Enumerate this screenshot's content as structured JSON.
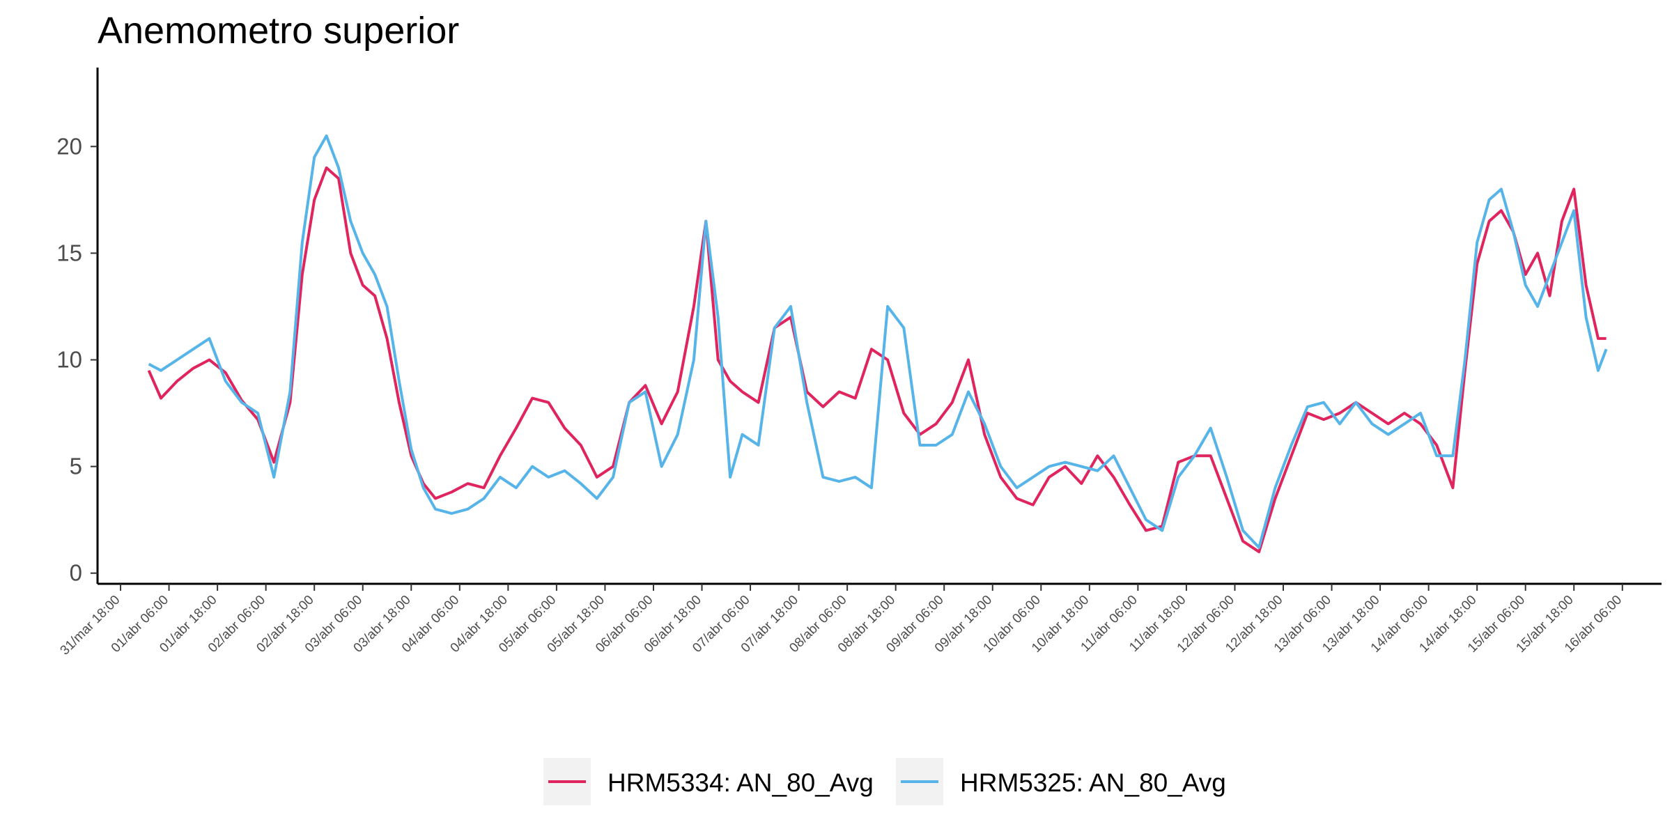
{
  "chart_data": {
    "type": "line",
    "title": "Anemometro superior",
    "xlabel": "",
    "ylabel": "",
    "ylim": [
      -0.5,
      23.7
    ],
    "yticks": [
      0,
      5,
      10,
      15,
      20
    ],
    "xlim": [
      "2025-03-31T12:18",
      "2025-04-16T15:42"
    ],
    "xtick_values": [
      "2025-03-31T18:00",
      "2025-04-01T06:00",
      "2025-04-01T18:00",
      "2025-04-02T06:00",
      "2025-04-02T18:00",
      "2025-04-03T06:00",
      "2025-04-03T18:00",
      "2025-04-04T06:00",
      "2025-04-04T18:00",
      "2025-04-05T06:00",
      "2025-04-05T18:00",
      "2025-04-06T06:00",
      "2025-04-06T18:00",
      "2025-04-07T06:00",
      "2025-04-07T18:00",
      "2025-04-08T06:00",
      "2025-04-08T18:00",
      "2025-04-09T06:00",
      "2025-04-09T18:00",
      "2025-04-10T06:00",
      "2025-04-10T18:00",
      "2025-04-11T06:00",
      "2025-04-11T18:00",
      "2025-04-12T06:00",
      "2025-04-12T18:00",
      "2025-04-13T06:00",
      "2025-04-13T18:00",
      "2025-04-14T06:00",
      "2025-04-14T18:00",
      "2025-04-15T06:00",
      "2025-04-15T18:00",
      "2025-04-16T06:00"
    ],
    "xtick_labels": [
      "31/mar 18:00",
      "01/abr 06:00",
      "01/abr 18:00",
      "02/abr 06:00",
      "02/abr 18:00",
      "03/abr 06:00",
      "03/abr 18:00",
      "04/abr 06:00",
      "04/abr 18:00",
      "05/abr 06:00",
      "05/abr 18:00",
      "06/abr 06:00",
      "06/abr 18:00",
      "07/abr 06:00",
      "07/abr 18:00",
      "08/abr 06:00",
      "08/abr 18:00",
      "09/abr 06:00",
      "09/abr 18:00",
      "10/abr 06:00",
      "10/abr 18:00",
      "11/abr 06:00",
      "11/abr 18:00",
      "12/abr 06:00",
      "12/abr 18:00",
      "13/abr 06:00",
      "13/abr 18:00",
      "14/abr 06:00",
      "14/abr 18:00",
      "15/abr 06:00",
      "15/abr 18:00",
      "16/abr 06:00"
    ],
    "grid": false,
    "legend": "bottom",
    "series": [
      {
        "name": "HRM5334: AN_80_Avg",
        "color": "#e0245e",
        "x": [
          "2025-04-01T01:00",
          "2025-04-01T04:00",
          "2025-04-01T08:00",
          "2025-04-01T12:00",
          "2025-04-01T16:00",
          "2025-04-01T20:00",
          "2025-04-02T00:00",
          "2025-04-02T04:00",
          "2025-04-02T08:00",
          "2025-04-02T12:00",
          "2025-04-02T15:00",
          "2025-04-02T18:00",
          "2025-04-02T21:00",
          "2025-04-03T00:00",
          "2025-04-03T03:00",
          "2025-04-03T06:00",
          "2025-04-03T09:00",
          "2025-04-03T12:00",
          "2025-04-03T15:00",
          "2025-04-03T18:00",
          "2025-04-03T21:00",
          "2025-04-04T00:00",
          "2025-04-04T04:00",
          "2025-04-04T08:00",
          "2025-04-04T12:00",
          "2025-04-04T16:00",
          "2025-04-04T20:00",
          "2025-04-05T00:00",
          "2025-04-05T04:00",
          "2025-04-05T08:00",
          "2025-04-05T12:00",
          "2025-04-05T16:00",
          "2025-04-05T20:00",
          "2025-04-06T00:00",
          "2025-04-06T04:00",
          "2025-04-06T08:00",
          "2025-04-06T12:00",
          "2025-04-06T16:00",
          "2025-04-06T19:00",
          "2025-04-06T22:00",
          "2025-04-07T01:00",
          "2025-04-07T04:00",
          "2025-04-07T08:00",
          "2025-04-07T12:00",
          "2025-04-07T16:00",
          "2025-04-07T20:00",
          "2025-04-08T00:00",
          "2025-04-08T04:00",
          "2025-04-08T08:00",
          "2025-04-08T12:00",
          "2025-04-08T16:00",
          "2025-04-08T20:00",
          "2025-04-09T00:00",
          "2025-04-09T04:00",
          "2025-04-09T08:00",
          "2025-04-09T12:00",
          "2025-04-09T16:00",
          "2025-04-09T20:00",
          "2025-04-10T00:00",
          "2025-04-10T04:00",
          "2025-04-10T08:00",
          "2025-04-10T12:00",
          "2025-04-10T16:00",
          "2025-04-10T20:00",
          "2025-04-11T00:00",
          "2025-04-11T04:00",
          "2025-04-11T08:00",
          "2025-04-11T12:00",
          "2025-04-11T16:00",
          "2025-04-11T20:00",
          "2025-04-12T00:00",
          "2025-04-12T04:00",
          "2025-04-12T08:00",
          "2025-04-12T12:00",
          "2025-04-12T16:00",
          "2025-04-12T20:00",
          "2025-04-13T00:00",
          "2025-04-13T04:00",
          "2025-04-13T08:00",
          "2025-04-13T12:00",
          "2025-04-13T16:00",
          "2025-04-13T20:00",
          "2025-04-14T00:00",
          "2025-04-14T04:00",
          "2025-04-14T08:00",
          "2025-04-14T12:00",
          "2025-04-14T15:00",
          "2025-04-14T18:00",
          "2025-04-14T21:00",
          "2025-04-15T00:00",
          "2025-04-15T03:00",
          "2025-04-15T06:00",
          "2025-04-15T09:00",
          "2025-04-15T12:00",
          "2025-04-15T15:00",
          "2025-04-15T18:00",
          "2025-04-15T21:00",
          "2025-04-16T00:00",
          "2025-04-16T02:00"
        ],
        "values": [
          9.5,
          8.2,
          9.0,
          9.6,
          10.0,
          9.4,
          8.1,
          7.2,
          5.2,
          8.0,
          14.0,
          17.5,
          19.0,
          18.5,
          15.0,
          13.5,
          13.0,
          11.0,
          8.0,
          5.5,
          4.2,
          3.5,
          3.8,
          4.2,
          4.0,
          5.5,
          6.8,
          8.2,
          8.0,
          6.8,
          6.0,
          4.5,
          5.0,
          8.0,
          8.8,
          7.0,
          8.5,
          12.5,
          16.5,
          10.0,
          9.0,
          8.5,
          8.0,
          11.5,
          12.0,
          8.5,
          7.8,
          8.5,
          8.2,
          10.5,
          10.0,
          7.5,
          6.5,
          7.0,
          8.0,
          10.0,
          6.5,
          4.5,
          3.5,
          3.2,
          4.5,
          5.0,
          4.2,
          5.5,
          4.5,
          3.2,
          2.0,
          2.2,
          5.2,
          5.5,
          5.5,
          3.5,
          1.5,
          1.0,
          3.5,
          5.5,
          7.5,
          7.2,
          7.5,
          8.0,
          7.5,
          7.0,
          7.5,
          7.0,
          6.0,
          4.0,
          9.5,
          14.5,
          16.5,
          17.0,
          16.0,
          14.0,
          15.0,
          13.0,
          16.5,
          18.0,
          13.5,
          11.0,
          11.0
        ]
      },
      {
        "name": "HRM5325: AN_80_Avg",
        "color": "#56b4e9",
        "x": [
          "2025-04-01T01:00",
          "2025-04-01T04:00",
          "2025-04-01T08:00",
          "2025-04-01T12:00",
          "2025-04-01T16:00",
          "2025-04-01T20:00",
          "2025-04-02T00:00",
          "2025-04-02T04:00",
          "2025-04-02T08:00",
          "2025-04-02T12:00",
          "2025-04-02T15:00",
          "2025-04-02T18:00",
          "2025-04-02T21:00",
          "2025-04-03T00:00",
          "2025-04-03T03:00",
          "2025-04-03T06:00",
          "2025-04-03T09:00",
          "2025-04-03T12:00",
          "2025-04-03T15:00",
          "2025-04-03T18:00",
          "2025-04-03T21:00",
          "2025-04-04T00:00",
          "2025-04-04T04:00",
          "2025-04-04T08:00",
          "2025-04-04T12:00",
          "2025-04-04T16:00",
          "2025-04-04T20:00",
          "2025-04-05T00:00",
          "2025-04-05T04:00",
          "2025-04-05T08:00",
          "2025-04-05T12:00",
          "2025-04-05T16:00",
          "2025-04-05T20:00",
          "2025-04-06T00:00",
          "2025-04-06T04:00",
          "2025-04-06T08:00",
          "2025-04-06T12:00",
          "2025-04-06T16:00",
          "2025-04-06T19:00",
          "2025-04-06T22:00",
          "2025-04-07T01:00",
          "2025-04-07T04:00",
          "2025-04-07T08:00",
          "2025-04-07T12:00",
          "2025-04-07T16:00",
          "2025-04-07T20:00",
          "2025-04-08T00:00",
          "2025-04-08T04:00",
          "2025-04-08T08:00",
          "2025-04-08T12:00",
          "2025-04-08T16:00",
          "2025-04-08T20:00",
          "2025-04-09T00:00",
          "2025-04-09T04:00",
          "2025-04-09T08:00",
          "2025-04-09T12:00",
          "2025-04-09T16:00",
          "2025-04-09T20:00",
          "2025-04-10T00:00",
          "2025-04-10T04:00",
          "2025-04-10T08:00",
          "2025-04-10T12:00",
          "2025-04-10T16:00",
          "2025-04-10T20:00",
          "2025-04-11T00:00",
          "2025-04-11T04:00",
          "2025-04-11T08:00",
          "2025-04-11T12:00",
          "2025-04-11T16:00",
          "2025-04-11T20:00",
          "2025-04-12T00:00",
          "2025-04-12T04:00",
          "2025-04-12T08:00",
          "2025-04-12T12:00",
          "2025-04-12T16:00",
          "2025-04-12T20:00",
          "2025-04-13T00:00",
          "2025-04-13T04:00",
          "2025-04-13T08:00",
          "2025-04-13T12:00",
          "2025-04-13T16:00",
          "2025-04-13T20:00",
          "2025-04-14T00:00",
          "2025-04-14T04:00",
          "2025-04-14T08:00",
          "2025-04-14T12:00",
          "2025-04-14T15:00",
          "2025-04-14T18:00",
          "2025-04-14T21:00",
          "2025-04-15T00:00",
          "2025-04-15T03:00",
          "2025-04-15T06:00",
          "2025-04-15T09:00",
          "2025-04-15T12:00",
          "2025-04-15T15:00",
          "2025-04-15T18:00",
          "2025-04-15T21:00",
          "2025-04-16T00:00",
          "2025-04-16T02:00"
        ],
        "values": [
          9.8,
          9.5,
          10.0,
          10.5,
          11.0,
          9.0,
          8.0,
          7.5,
          4.5,
          8.5,
          15.5,
          19.5,
          20.5,
          19.0,
          16.5,
          15.0,
          14.0,
          12.5,
          9.0,
          5.8,
          4.0,
          3.0,
          2.8,
          3.0,
          3.5,
          4.5,
          4.0,
          5.0,
          4.5,
          4.8,
          4.2,
          3.5,
          4.5,
          8.0,
          8.5,
          5.0,
          6.5,
          10.0,
          16.5,
          12.0,
          4.5,
          6.5,
          6.0,
          11.5,
          12.5,
          8.0,
          4.5,
          4.3,
          4.5,
          4.0,
          12.5,
          11.5,
          6.0,
          6.0,
          6.5,
          8.5,
          7.0,
          5.0,
          4.0,
          4.5,
          5.0,
          5.2,
          5.0,
          4.8,
          5.5,
          4.0,
          2.5,
          2.0,
          4.5,
          5.5,
          6.8,
          4.5,
          2.0,
          1.2,
          4.0,
          6.0,
          7.8,
          8.0,
          7.0,
          8.0,
          7.0,
          6.5,
          7.0,
          7.5,
          5.5,
          5.5,
          10.0,
          15.5,
          17.5,
          18.0,
          16.0,
          13.5,
          12.5,
          14.0,
          15.5,
          17.0,
          12.0,
          9.5,
          10.5
        ]
      }
    ]
  }
}
